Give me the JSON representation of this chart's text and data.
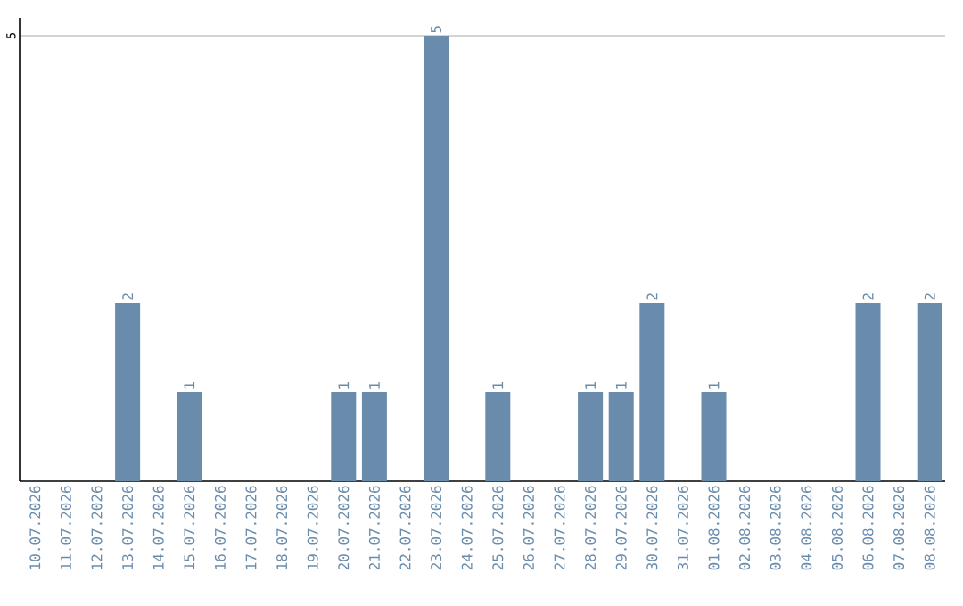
{
  "chart_data": {
    "type": "bar",
    "categories": [
      "10.07.2026",
      "11.07.2026",
      "12.07.2026",
      "13.07.2026",
      "14.07.2026",
      "15.07.2026",
      "16.07.2026",
      "17.07.2026",
      "18.07.2026",
      "19.07.2026",
      "20.07.2026",
      "21.07.2026",
      "22.07.2026",
      "23.07.2026",
      "24.07.2026",
      "25.07.2026",
      "26.07.2026",
      "27.07.2026",
      "28.07.2026",
      "29.07.2026",
      "30.07.2026",
      "31.07.2026",
      "01.08.2026",
      "02.08.2026",
      "03.08.2026",
      "04.08.2026",
      "05.08.2026",
      "06.08.2026",
      "07.08.2026",
      "08.08.2026"
    ],
    "values": [
      0,
      0,
      0,
      2,
      0,
      1,
      0,
      0,
      0,
      0,
      1,
      1,
      0,
      5,
      0,
      1,
      0,
      0,
      1,
      1,
      2,
      0,
      1,
      0,
      0,
      0,
      0,
      2,
      0,
      2
    ],
    "value_labels": [
      null,
      null,
      null,
      "2",
      null,
      "1",
      null,
      null,
      null,
      null,
      "1",
      "1",
      null,
      "5",
      null,
      "1",
      null,
      null,
      "1",
      "1",
      "2",
      null,
      "1",
      null,
      null,
      null,
      null,
      "2",
      null,
      "2"
    ],
    "color": "#6a8cac",
    "ylim": [
      0,
      5.2
    ],
    "yticks": [
      5
    ],
    "grid": "y"
  }
}
